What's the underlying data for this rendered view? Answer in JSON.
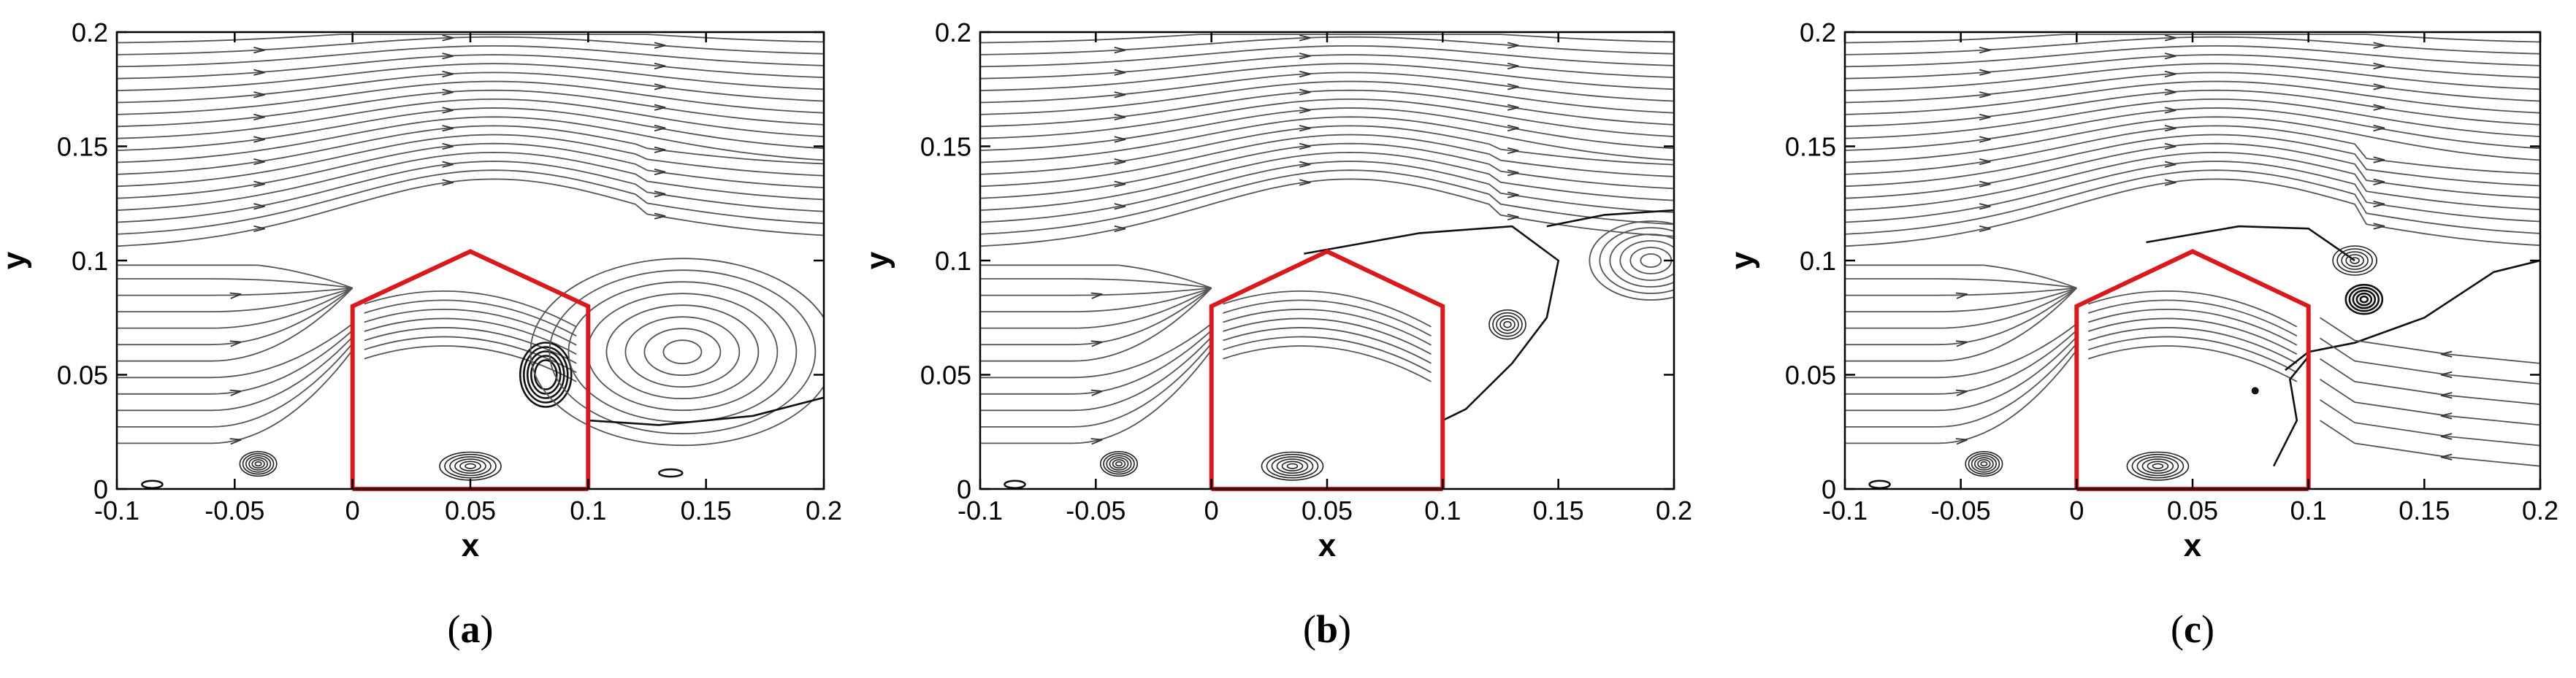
{
  "figure": {
    "panels": [
      {
        "id": "a",
        "caption_letter": "a",
        "variant": "a"
      },
      {
        "id": "b",
        "caption_letter": "b",
        "variant": "b"
      },
      {
        "id": "c",
        "caption_letter": "c",
        "variant": "c"
      }
    ],
    "axes": {
      "xlabel": "x",
      "ylabel": "y",
      "xlim": [
        -0.1,
        0.2
      ],
      "ylim": [
        0,
        0.2
      ],
      "xticks": [
        -0.1,
        -0.05,
        0,
        0.05,
        0.1,
        0.15,
        0.2
      ],
      "xtick_labels": [
        "-0.1",
        "-0.05",
        "0",
        "0.05",
        "0.1",
        "0.15",
        "0.2"
      ],
      "yticks": [
        0,
        0.05,
        0.1,
        0.15,
        0.2
      ],
      "ytick_labels": [
        "0",
        "0.05",
        "0.1",
        "0.15",
        "0.2"
      ]
    },
    "building_outline_xy": [
      [
        0,
        0
      ],
      [
        0,
        0.08
      ],
      [
        0.05,
        0.104
      ],
      [
        0.1,
        0.08
      ],
      [
        0.1,
        0
      ]
    ],
    "colors": {
      "building": "#d9191c",
      "streamline": "#555555",
      "axes": "#000000"
    }
  }
}
